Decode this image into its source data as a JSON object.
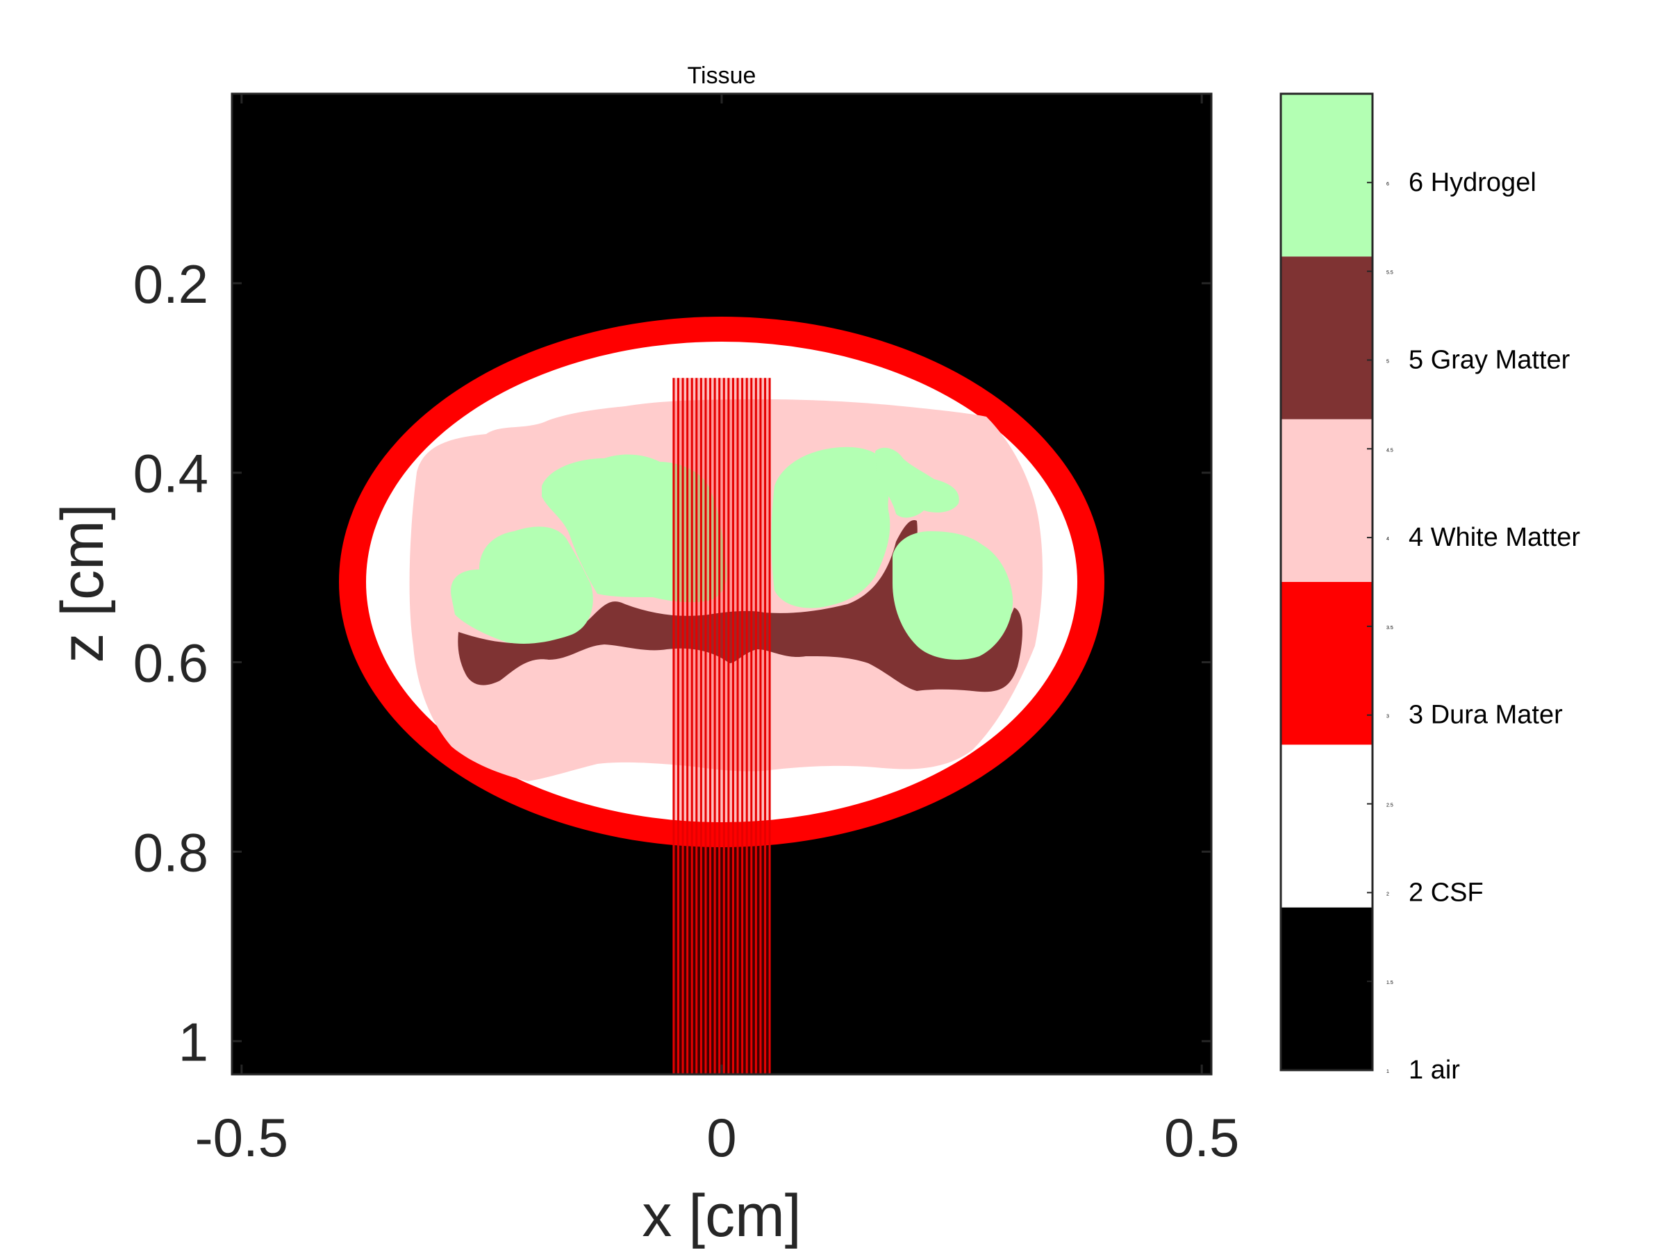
{
  "chart_data": {
    "type": "heatmap",
    "title": "Tissue",
    "xlabel": "x [cm]",
    "ylabel": "z [cm]",
    "xlim": [
      -0.51,
      0.51
    ],
    "ylim": [
      0.0,
      1.035
    ],
    "y_reversed": true,
    "x_ticks": [
      -0.5,
      0,
      0.5
    ],
    "x_tick_labels": [
      "-0.5",
      "0",
      "0.5"
    ],
    "y_ticks": [
      0.2,
      0.4,
      0.6,
      0.8,
      1.0
    ],
    "y_tick_labels": [
      "0.2",
      "0.4",
      "0.6",
      "0.8",
      "1"
    ],
    "grid": false,
    "colorbar": {
      "placement": "right",
      "range": [
        1,
        6.5
      ],
      "categories": [
        {
          "value": 1,
          "label": "1 air",
          "color": "#000000"
        },
        {
          "value": 2,
          "label": "2 CSF",
          "color": "#ffffff"
        },
        {
          "value": 3,
          "label": "3 Dura Mater",
          "color": "#ff0000"
        },
        {
          "value": 4,
          "label": "4 White Matter",
          "color": "#ffcccc"
        },
        {
          "value": 5,
          "label": "5 Gray Matter",
          "color": "#7f3333"
        },
        {
          "value": 6,
          "label": "6 Hydrogel",
          "color": "#b3ffb3"
        }
      ],
      "minor_ticks": [
        {
          "value": 1,
          "label": "1"
        },
        {
          "value": 1.5,
          "label": "1.5"
        },
        {
          "value": 2,
          "label": "2"
        },
        {
          "value": 2.5,
          "label": "2.5"
        },
        {
          "value": 3,
          "label": "3"
        },
        {
          "value": 3.5,
          "label": "3.5"
        },
        {
          "value": 4,
          "label": "4"
        },
        {
          "value": 4.5,
          "label": "4.5"
        },
        {
          "value": 5,
          "label": "5"
        },
        {
          "value": 5.5,
          "label": "5.5"
        },
        {
          "value": 6,
          "label": "6"
        }
      ]
    },
    "regions": {
      "dura_ellipse": {
        "center": [
          0.0,
          0.52
        ],
        "rx": 0.4,
        "rz": 0.28,
        "thickness": 0.028
      },
      "beam": {
        "x_range": [
          -0.05,
          0.05
        ],
        "z_start": 0.3,
        "z_end": 1.035,
        "n_lines": 22
      }
    }
  }
}
